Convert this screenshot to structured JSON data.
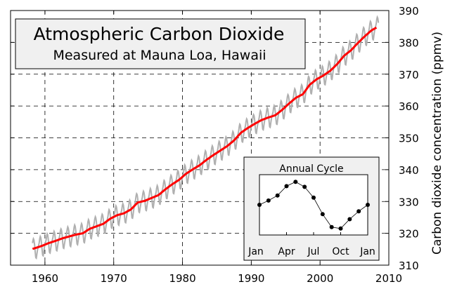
{
  "chart_data": {
    "type": "line",
    "title": "Atmospheric Carbon Dioxide",
    "subtitle": "Measured at Mauna Loa, Hawaii",
    "ylabel": "Carbon dioxide concentration (ppmv)",
    "xlabel": "",
    "xlim": [
      1955,
      2010
    ],
    "ylim": [
      310,
      390
    ],
    "xticks": [
      "1960",
      "1970",
      "1980",
      "1990",
      "2000",
      "2010"
    ],
    "yticks": [
      "310",
      "320",
      "330",
      "340",
      "350",
      "360",
      "370",
      "380",
      "390"
    ],
    "grid": true,
    "y_axis_side": "right",
    "colors": {
      "monthly": "#b0b0b0",
      "trend": "#ff0000",
      "title_box": "#f0f0f0"
    },
    "trend": {
      "years": [
        1958,
        1959,
        1960,
        1961,
        1962,
        1963,
        1964,
        1965,
        1966,
        1967,
        1968,
        1969,
        1970,
        1971,
        1972,
        1973,
        1974,
        1975,
        1976,
        1977,
        1978,
        1979,
        1980,
        1981,
        1982,
        1983,
        1984,
        1985,
        1986,
        1987,
        1988,
        1989,
        1990,
        1991,
        1992,
        1993,
        1994,
        1995,
        1996,
        1997,
        1998,
        1999,
        2000,
        2001,
        2002,
        2003,
        2004,
        2005,
        2006,
        2007,
        2008
      ],
      "values": [
        315.3,
        316.0,
        316.9,
        317.6,
        318.4,
        319.0,
        319.6,
        320.0,
        321.4,
        322.2,
        323.0,
        324.6,
        325.7,
        326.3,
        327.5,
        329.7,
        330.2,
        331.1,
        332.0,
        333.8,
        335.4,
        336.8,
        338.7,
        340.1,
        341.4,
        343.1,
        344.6,
        346.0,
        347.4,
        349.2,
        351.6,
        353.1,
        354.4,
        355.6,
        356.4,
        357.1,
        358.8,
        360.8,
        362.6,
        363.7,
        366.7,
        368.4,
        369.6,
        371.1,
        373.2,
        375.8,
        377.5,
        379.8,
        381.9,
        383.8,
        385.0
      ]
    },
    "inset": {
      "title": "Annual Cycle",
      "type": "line",
      "xticks": [
        "Jan",
        "Apr",
        "Jul",
        "Oct",
        "Jan"
      ],
      "months": [
        "Jan",
        "Feb",
        "Mar",
        "Apr",
        "May",
        "Jun",
        "Jul",
        "Aug",
        "Sep",
        "Oct",
        "Nov",
        "Dec",
        "Jan"
      ],
      "values": [
        0.0,
        0.6,
        1.3,
        2.6,
        3.2,
        2.5,
        1.0,
        -1.3,
        -3.1,
        -3.3,
        -2.0,
        -0.9,
        0.0
      ],
      "ylim": [
        -4.2,
        4.2
      ]
    }
  }
}
